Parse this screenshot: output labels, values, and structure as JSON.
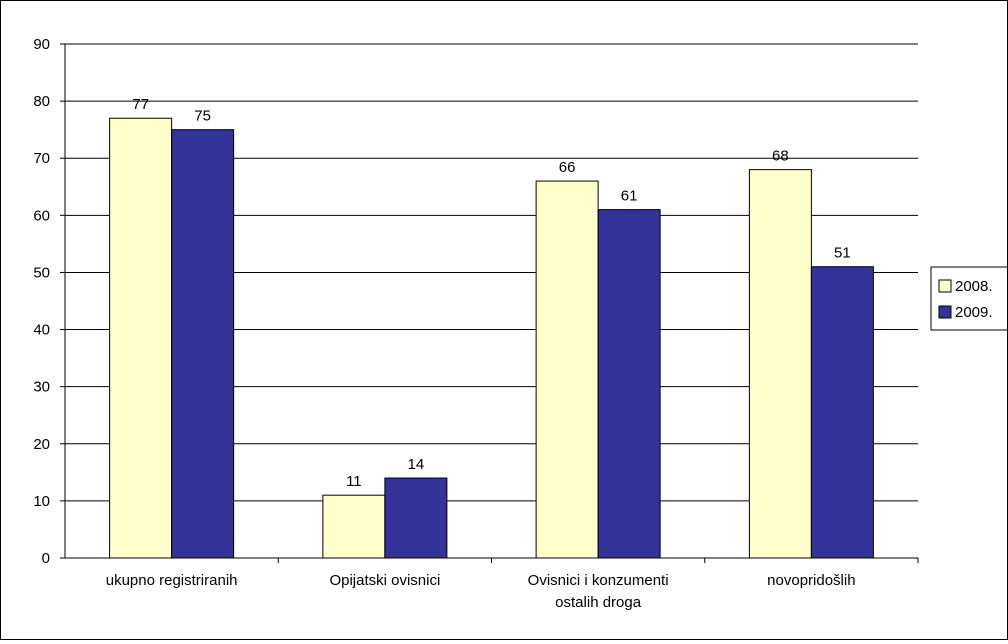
{
  "chart_data": {
    "type": "bar",
    "categories": [
      [
        "ukupno registriranih"
      ],
      [
        "Opijatski ovisnici"
      ],
      [
        "Ovisnici i konzumenti",
        "ostalih droga"
      ],
      [
        "novopridošlih"
      ]
    ],
    "series": [
      {
        "name": "2008.",
        "values": [
          77,
          11,
          66,
          68
        ],
        "color": "#FFFFCC"
      },
      {
        "name": "2009.",
        "values": [
          75,
          14,
          61,
          51
        ],
        "color": "#333399"
      }
    ],
    "ylim": [
      0,
      90
    ],
    "yticks": [
      0,
      10,
      20,
      30,
      40,
      50,
      60,
      70,
      80,
      90
    ],
    "grid": true,
    "data_labels": true,
    "legend": "right",
    "title": "",
    "xlabel": "",
    "ylabel": ""
  }
}
